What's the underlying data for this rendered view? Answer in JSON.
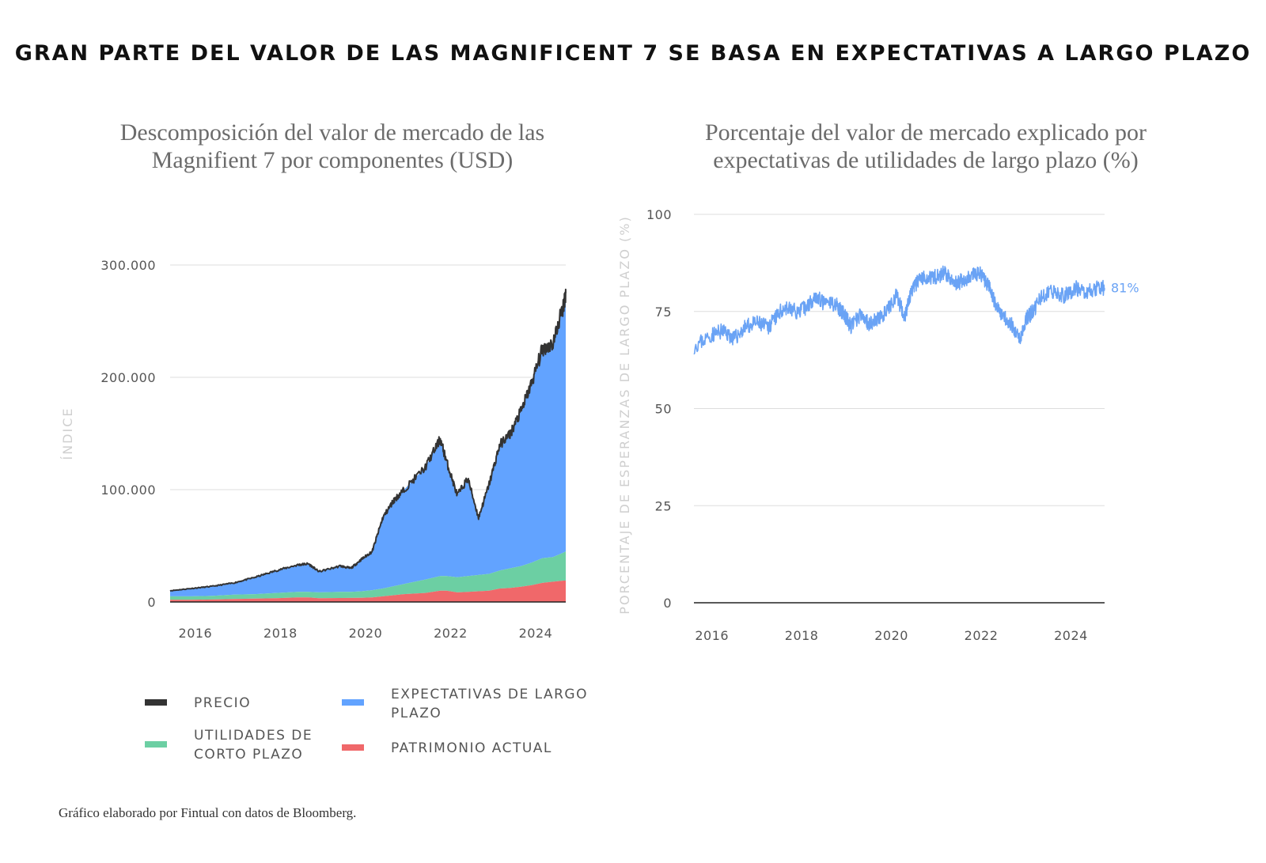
{
  "title": "GRAN PARTE DEL VALOR DE LAS MAGNIFICENT 7 SE BASA EN EXPECTATIVAS A LARGO PLAZO",
  "footnote": "Gráfico elaborado por Fintual con datos de Bloomberg.",
  "colors": {
    "precio": "#333333",
    "largo_plazo": "#62a3ff",
    "corto_plazo": "#6ccfa3",
    "patrimonio": "#f0686a",
    "pct_line": "#6aa3f5",
    "grid": "#dddddd"
  },
  "legend": [
    {
      "label": "PRECIO",
      "color_key": "precio"
    },
    {
      "label": "EXPECTATIVAS DE LARGO PLAZO",
      "color_key": "largo_plazo"
    },
    {
      "label": "UTILIDADES DE CORTO PLAZO",
      "color_key": "corto_plazo"
    },
    {
      "label": "PATRIMONIO ACTUAL",
      "color_key": "patrimonio"
    }
  ],
  "chart_data": [
    {
      "type": "area",
      "title": "Descomposición del valor de mercado de las Magnifient 7 por componentes (USD)",
      "ylabel": "ÍNDICE",
      "xlabel": "",
      "xlim": [
        2015.5,
        2024.8
      ],
      "ylim": [
        0,
        300000
      ],
      "yticks": [
        0,
        100000,
        200000,
        300000
      ],
      "ytick_labels": [
        "0",
        "100.000",
        "200.000",
        "300.000"
      ],
      "xticks": [
        2016,
        2018,
        2020,
        2022,
        2024
      ],
      "xtick_labels": [
        "2016",
        "2018",
        "2020",
        "2022",
        "2024"
      ],
      "grid": true,
      "x": [
        2015.5,
        2016.0,
        2016.5,
        2017.0,
        2017.5,
        2018.0,
        2018.5,
        2018.75,
        2019.0,
        2019.5,
        2019.75,
        2020.0,
        2020.25,
        2020.5,
        2020.75,
        2021.0,
        2021.5,
        2021.85,
        2022.0,
        2022.25,
        2022.5,
        2022.75,
        2023.0,
        2023.25,
        2023.5,
        2023.75,
        2024.0,
        2024.25,
        2024.5,
        2024.75,
        2024.8
      ],
      "series": [
        {
          "name": "PRECIO",
          "values": [
            10000,
            12000,
            14000,
            17000,
            22000,
            28000,
            33000,
            34000,
            27000,
            32000,
            30000,
            38000,
            45000,
            75000,
            90000,
            100000,
            120000,
            145000,
            125000,
            95000,
            110000,
            75000,
            105000,
            140000,
            150000,
            170000,
            195000,
            225000,
            230000,
            265000,
            275000
          ]
        },
        {
          "name": "EXPECTATIVAS DE LARGO PLAZO",
          "values": [
            5000,
            7000,
            8500,
            10500,
            15000,
            20000,
            24000,
            25000,
            18500,
            23000,
            21000,
            28500,
            34500,
            63000,
            76000,
            84000,
            100000,
            122000,
            102000,
            73000,
            87000,
            51000,
            80000,
            112000,
            120000,
            138000,
            160000,
            186000,
            190000,
            221000,
            230000
          ]
        },
        {
          "name": "UTILIDADES DE CORTO PLAZO",
          "values": [
            3000,
            3000,
            3300,
            3800,
            4000,
            4700,
            5000,
            5000,
            5200,
            5500,
            5400,
            5800,
            6500,
            7000,
            8000,
            9000,
            12000,
            13000,
            13000,
            13500,
            14000,
            14500,
            15000,
            16000,
            17500,
            18500,
            20000,
            22000,
            22000,
            25000,
            26000
          ]
        },
        {
          "name": "PATRIMONIO ACTUAL",
          "values": [
            2000,
            2000,
            2200,
            2700,
            3000,
            3300,
            4000,
            4000,
            3300,
            3500,
            3600,
            3700,
            4000,
            5000,
            6000,
            7000,
            8000,
            10000,
            10000,
            8500,
            9000,
            9500,
            10000,
            12000,
            12500,
            13500,
            15000,
            17000,
            18000,
            19000,
            19000
          ]
        }
      ]
    },
    {
      "type": "line",
      "title": "Porcentaje del valor de mercado explicado por expectativas de utilidades de largo plazo (%)",
      "ylabel": "PORCENTAJE DE ESPERANZAS  DE LARGO PLAZO (%)",
      "xlabel": "",
      "xlim": [
        2015.6,
        2024.75
      ],
      "ylim": [
        0,
        100
      ],
      "yticks": [
        0,
        25,
        50,
        75,
        100
      ],
      "ytick_labels": [
        "0",
        "25",
        "50",
        "75",
        "100"
      ],
      "xticks": [
        2016,
        2018,
        2020,
        2022,
        2024
      ],
      "xtick_labels": [
        "2016",
        "2018",
        "2020",
        "2022",
        "2024"
      ],
      "grid": true,
      "end_label": "81%",
      "x": [
        2015.6,
        2016.0,
        2016.25,
        2016.5,
        2016.75,
        2017.0,
        2017.25,
        2017.4,
        2017.6,
        2017.9,
        2018.1,
        2018.3,
        2018.5,
        2018.75,
        2018.9,
        2019.0,
        2019.1,
        2019.3,
        2019.5,
        2019.7,
        2019.9,
        2020.1,
        2020.3,
        2020.45,
        2020.6,
        2020.8,
        2021.0,
        2021.2,
        2021.4,
        2021.6,
        2021.8,
        2021.95,
        2022.15,
        2022.35,
        2022.5,
        2022.65,
        2022.85,
        2023.0,
        2023.15,
        2023.35,
        2023.6,
        2023.85,
        2024.1,
        2024.35,
        2024.55,
        2024.75
      ],
      "series": [
        {
          "name": "",
          "values": [
            66,
            69,
            70,
            68,
            71,
            72,
            71,
            73,
            76,
            75,
            76,
            79,
            77,
            77,
            75,
            73,
            71,
            74,
            72,
            73,
            75,
            79,
            74,
            80,
            83,
            84,
            84,
            85,
            82,
            83,
            84,
            85,
            82,
            76,
            74,
            72,
            68,
            73,
            75,
            79,
            80,
            79,
            81,
            80,
            81,
            81
          ]
        }
      ]
    }
  ]
}
